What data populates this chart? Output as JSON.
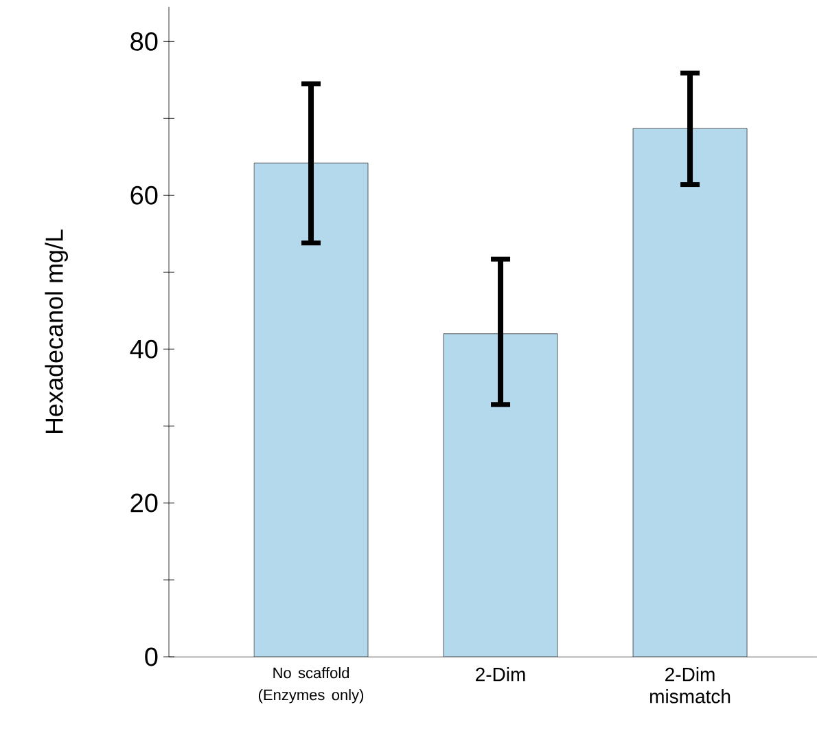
{
  "chart_data": {
    "type": "bar",
    "ylabel": "Hexadecanol mg/L",
    "categories": [
      "No scaffold (Enzymes only)",
      "2-Dim",
      "2-Dim mismatch"
    ],
    "values": [
      64.2,
      42.0,
      68.7
    ],
    "errors": [
      [
        53.8,
        74.5
      ],
      [
        32.8,
        51.7
      ],
      [
        61.4,
        75.9
      ]
    ],
    "color": "#b4d8ec",
    "ylim": [
      0,
      84.5
    ],
    "yticks": [
      0,
      {
        "value": 10,
        "label": null
      },
      20,
      {
        "value": 30,
        "label": null
      },
      40,
      {
        "value": 50,
        "label": null
      },
      60,
      {
        "value": 70,
        "label": null
      },
      80
    ],
    "grid": false
  }
}
